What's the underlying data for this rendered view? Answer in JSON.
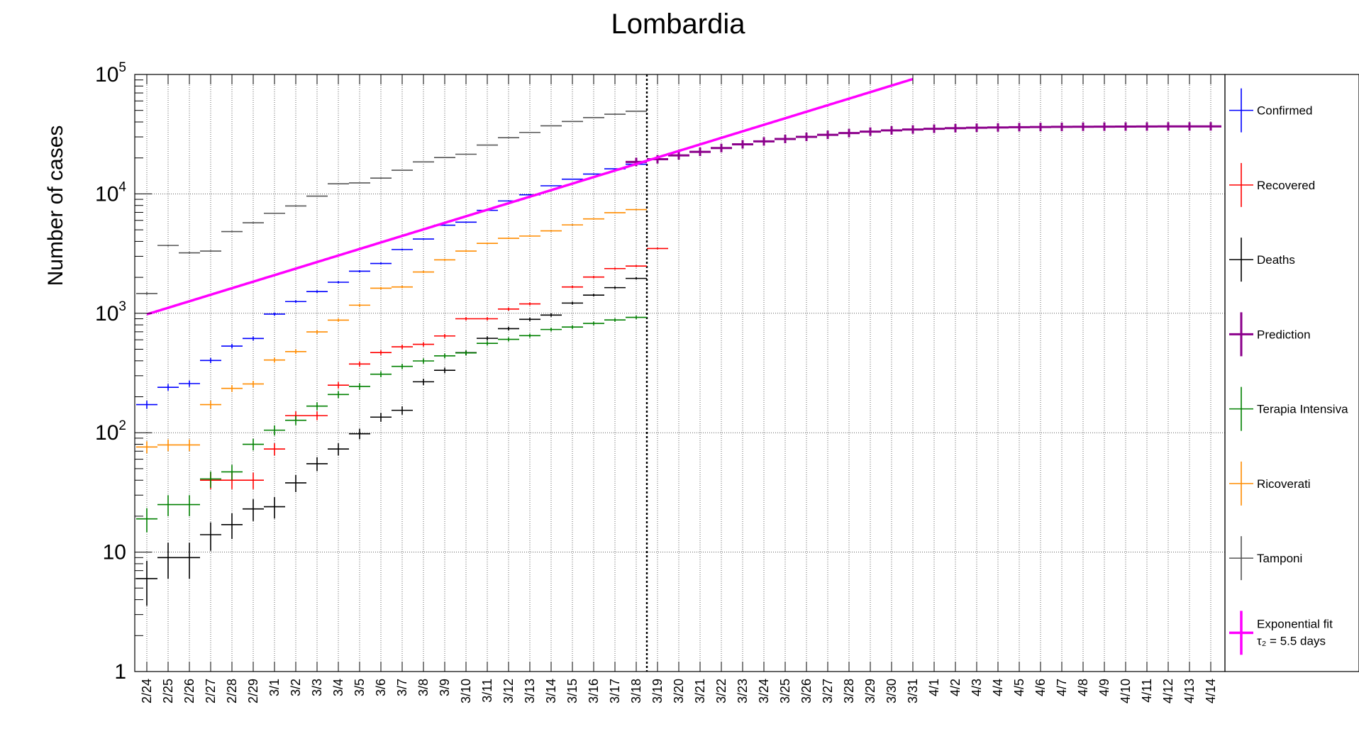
{
  "chart_data": {
    "type": "scatter",
    "title": "Lombardia",
    "ylabel": "Number of cases",
    "xlabel": "",
    "yscale": "log",
    "ylim": [
      1,
      100000
    ],
    "grid": true,
    "legend_position": "right",
    "y_ticks": [
      {
        "value": 1,
        "label": "1",
        "exp": ""
      },
      {
        "value": 10,
        "label": "10",
        "exp": ""
      },
      {
        "value": 100,
        "label": "10",
        "exp": "2"
      },
      {
        "value": 1000,
        "label": "10",
        "exp": "3"
      },
      {
        "value": 10000,
        "label": "10",
        "exp": "4"
      },
      {
        "value": 100000,
        "label": "10",
        "exp": "5"
      }
    ],
    "dates": [
      "2/24",
      "2/25",
      "2/26",
      "2/27",
      "2/28",
      "2/29",
      "3/1",
      "3/2",
      "3/3",
      "3/4",
      "3/5",
      "3/6",
      "3/7",
      "3/8",
      "3/9",
      "3/10",
      "3/11",
      "3/12",
      "3/13",
      "3/14",
      "3/15",
      "3/16",
      "3/17",
      "3/18",
      "3/19",
      "3/20",
      "3/21",
      "3/22",
      "3/23",
      "3/24",
      "3/25",
      "3/26",
      "3/27",
      "3/28",
      "3/29",
      "3/30",
      "3/31",
      "4/1",
      "4/2",
      "4/3",
      "4/4",
      "4/5",
      "4/6",
      "4/7",
      "4/8",
      "4/9",
      "4/10",
      "4/11",
      "4/12",
      "4/13",
      "4/14"
    ],
    "divider_after": "3/18",
    "fit_annotation_lines": [
      "Exponential fit",
      "τ₂ = 5.5 days"
    ],
    "fit": {
      "name": "Exponential fit",
      "start": "2/24",
      "end": "3/31",
      "y_start": 980,
      "doubling_days": 5.5
    },
    "series": [
      {
        "name": "Confirmed",
        "color": "#0000ff",
        "start": "2/24",
        "values": [
          172,
          240,
          258,
          403,
          531,
          615,
          984,
          1254,
          1520,
          1820,
          2251,
          2612,
          3420,
          4189,
          5469,
          5791,
          7280,
          8725,
          9820,
          11685,
          13272,
          14649,
          16220,
          17713
        ]
      },
      {
        "name": "Recovered",
        "color": "#ff0000",
        "start": "2/25",
        "values": [
          null,
          null,
          40,
          40,
          40,
          73,
          139,
          139,
          250,
          376,
          469,
          524,
          550,
          646,
          900,
          900,
          1085,
          1198,
          null,
          1660,
          2011,
          2368,
          2485,
          3488
        ]
      },
      {
        "name": "Deaths",
        "color": "#000000",
        "start": "2/24",
        "values": [
          6,
          9,
          9,
          14,
          17,
          23,
          24,
          38,
          55,
          73,
          98,
          135,
          154,
          267,
          333,
          468,
          617,
          744,
          890,
          966,
          1218,
          1420,
          1640,
          1959
        ]
      },
      {
        "name": "Prediction",
        "color": "#8b008b",
        "start": "3/18",
        "values": [
          18500,
          19500,
          21000,
          22500,
          24200,
          26000,
          27500,
          28800,
          30000,
          31200,
          32300,
          33200,
          34000,
          34600,
          35100,
          35500,
          35800,
          36000,
          36200,
          36300,
          36400,
          36500,
          36550,
          36600,
          36650,
          36700,
          36700,
          36750
        ]
      },
      {
        "name": "Terapia Intensiva",
        "color": "#008000",
        "start": "2/24",
        "values": [
          19,
          25,
          25,
          41,
          47,
          80,
          105,
          127,
          167,
          209,
          244,
          309,
          359,
          399,
          440,
          466,
          560,
          605,
          650,
          732,
          767,
          823,
          879,
          924
        ]
      },
      {
        "name": "Ricoverati",
        "color": "#ff8c00",
        "start": "2/24",
        "values": [
          76,
          79,
          79,
          172,
          235,
          256,
          406,
          478,
          698,
          877,
          1169,
          1622,
          1661,
          2217,
          2802,
          3319,
          3852,
          4247,
          4435,
          4898,
          5500,
          6171,
          6953,
          7387
        ]
      },
      {
        "name": "Tamponi",
        "color": "#555555",
        "start": "2/24",
        "values": [
          1463,
          3700,
          3208,
          3320,
          4835,
          5723,
          6879,
          7925,
          9577,
          12138,
          12354,
          13556,
          15778,
          18534,
          20135,
          21479,
          25629,
          29534,
          32700,
          37138,
          40369,
          43565,
          46449,
          49256
        ]
      }
    ]
  }
}
